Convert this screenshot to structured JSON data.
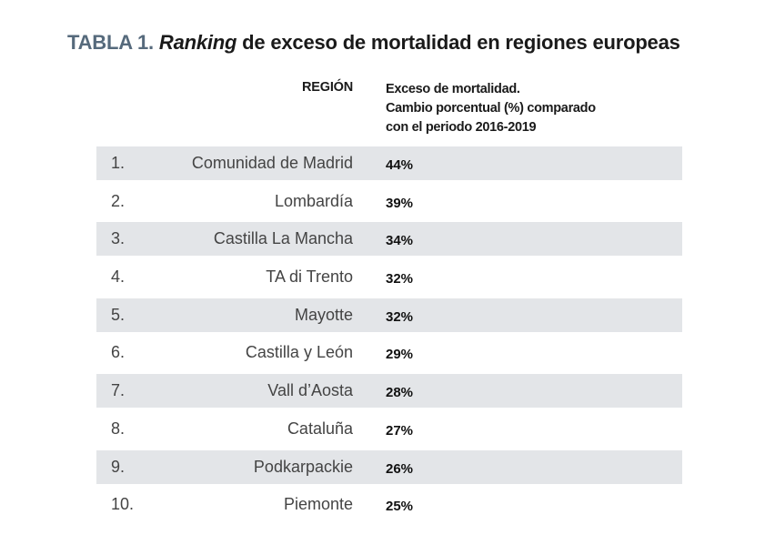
{
  "title": {
    "prefix": "TABLA 1.",
    "italic": "Ranking",
    "rest": " de exceso de mortalidad en regiones europeas"
  },
  "headers": {
    "region": "REGIÓN",
    "value_lines": [
      "Exceso de mortalidad.",
      "Cambio porcentual (%) comparado",
      "con el periodo 2016-2019"
    ]
  },
  "chart_data": {
    "type": "table",
    "title": "TABLA 1. Ranking de exceso de mortalidad en regiones europeas",
    "columns": [
      "REGIÓN",
      "Exceso de mortalidad. Cambio porcentual (%) comparado con el periodo 2016-2019"
    ],
    "rows": [
      {
        "rank": "1.",
        "region": "Comunidad de Madrid",
        "value": "44%",
        "number": 44
      },
      {
        "rank": "2.",
        "region": "Lombardía",
        "value": "39%",
        "number": 39
      },
      {
        "rank": "3.",
        "region": "Castilla La Mancha",
        "value": "34%",
        "number": 34
      },
      {
        "rank": "4.",
        "region": "TA di Trento",
        "value": "32%",
        "number": 32
      },
      {
        "rank": "5.",
        "region": "Mayotte",
        "value": "32%",
        "number": 32
      },
      {
        "rank": "6.",
        "region": "Castilla y León",
        "value": "29%",
        "number": 29
      },
      {
        "rank": "7.",
        "region": "Vall d’Aosta",
        "value": "28%",
        "number": 28
      },
      {
        "rank": "8.",
        "region": "Cataluña",
        "value": "27%",
        "number": 27
      },
      {
        "rank": "9.",
        "region": "Podkarpackie",
        "value": "26%",
        "number": 26
      },
      {
        "rank": "10.",
        "region": "Piemonte",
        "value": "25%",
        "number": 25
      }
    ]
  },
  "colors": {
    "shaded_row": "#e3e5e8",
    "title_prefix": "#566a7c"
  }
}
